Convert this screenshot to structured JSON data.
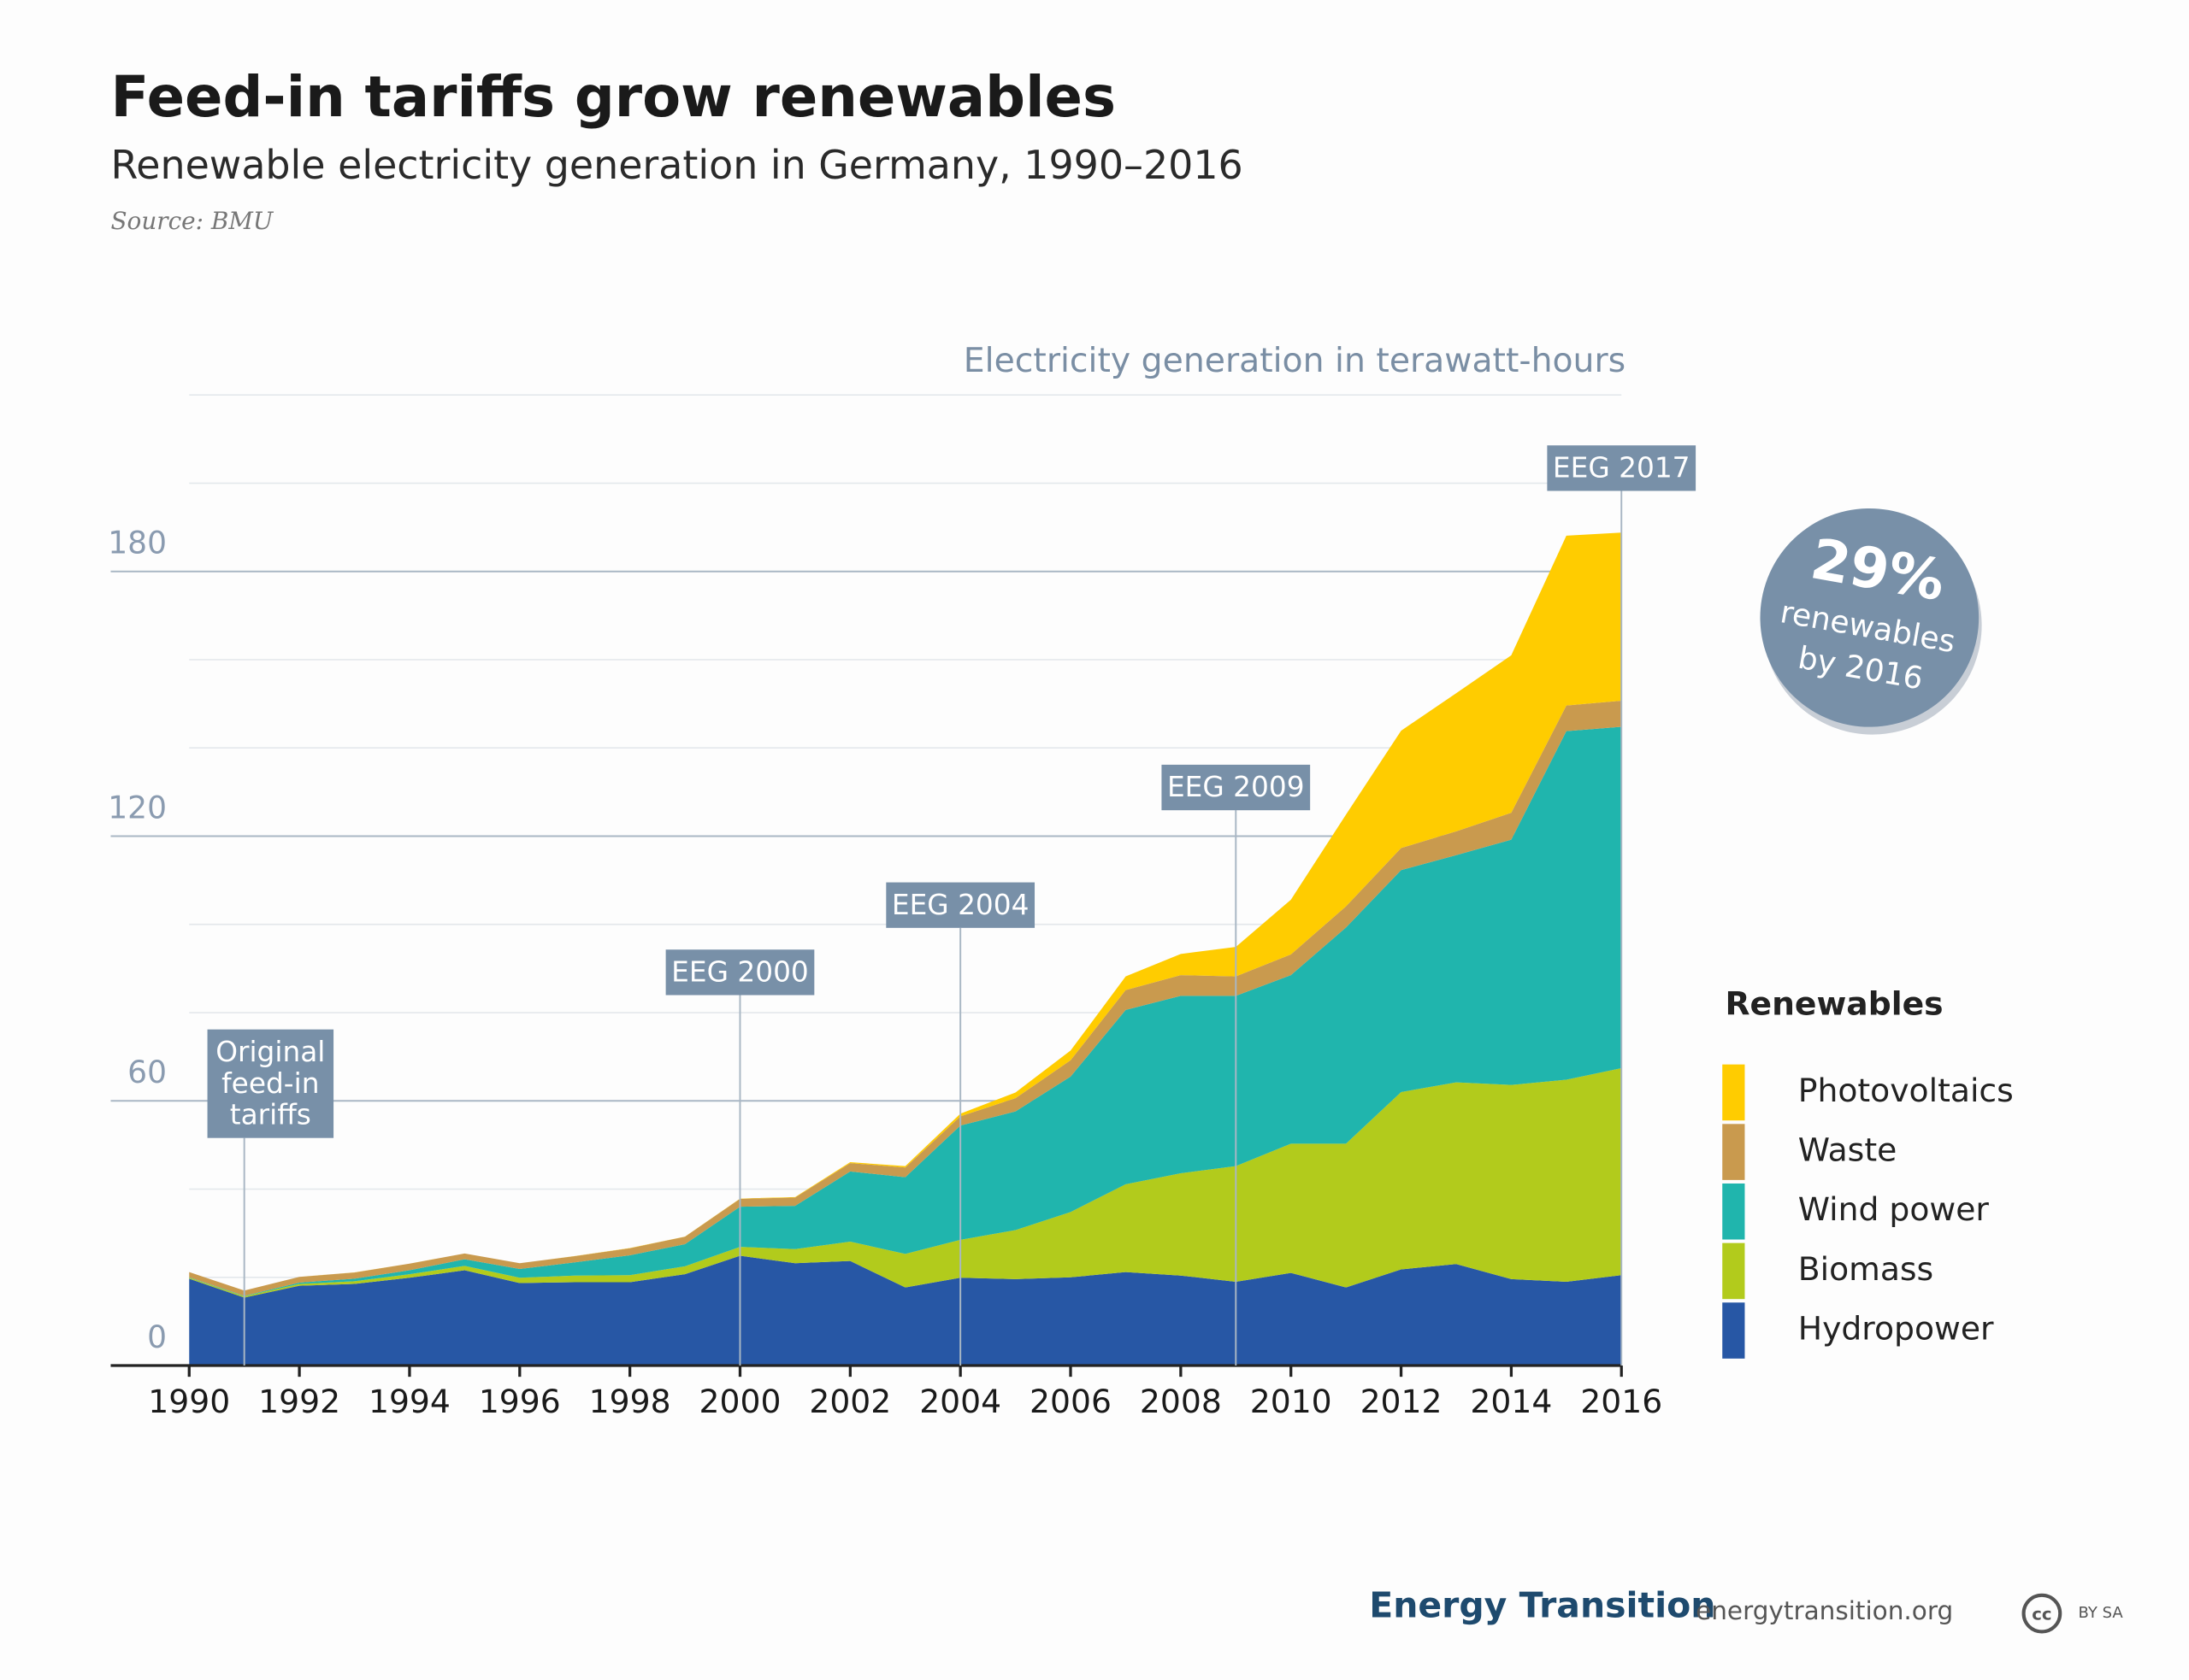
{
  "chart_data": {
    "type": "area",
    "stacked": true,
    "title": "Feed-in tariffs grow renewables",
    "subtitle": "Renewable electricity generation in Germany, 1990–2016",
    "source": "Source: BMU",
    "y_axis_title": "Electricity generation in terawatt-hours",
    "legend_title": "Renewables",
    "x": [
      1990,
      1991,
      1992,
      1993,
      1994,
      1995,
      1996,
      1997,
      1998,
      1999,
      2000,
      2001,
      2002,
      2003,
      2004,
      2005,
      2006,
      2007,
      2008,
      2009,
      2010,
      2011,
      2012,
      2013,
      2014,
      2015,
      2016
    ],
    "xlim": [
      1990,
      2016
    ],
    "xticks": [
      1990,
      1992,
      1994,
      1996,
      1998,
      2000,
      2002,
      2004,
      2006,
      2008,
      2010,
      2012,
      2014,
      2016
    ],
    "ylim": [
      0,
      220
    ],
    "yticks": [
      0,
      60,
      120,
      180
    ],
    "minor_yticks": [
      20,
      40,
      80,
      100,
      140,
      160,
      200,
      220
    ],
    "grid": true,
    "series": [
      {
        "name": "Hydropower",
        "color": "#2757a5",
        "values": [
          19.7,
          15.4,
          18.1,
          18.5,
          19.9,
          21.6,
          18.7,
          18.9,
          18.9,
          20.7,
          24.9,
          23.2,
          23.7,
          17.7,
          19.9,
          19.6,
          20.0,
          21.2,
          20.4,
          19.0,
          21.0,
          17.7,
          21.8,
          23.0,
          19.6,
          19.0,
          20.5
        ]
      },
      {
        "name": "Biomass",
        "color": "#b2cb1c",
        "values": [
          0.2,
          0.3,
          0.4,
          0.6,
          0.8,
          1.0,
          1.2,
          1.5,
          1.6,
          1.8,
          2.0,
          3.2,
          4.4,
          7.6,
          8.6,
          11.1,
          14.8,
          19.9,
          23.2,
          26.2,
          29.3,
          32.6,
          40.2,
          41.2,
          44.0,
          45.8,
          46.9
        ]
      },
      {
        "name": "Wind power",
        "color": "#20b5ad",
        "values": [
          0.1,
          0.1,
          0.3,
          0.6,
          0.9,
          1.5,
          2.0,
          3.0,
          4.5,
          5.0,
          9.1,
          9.8,
          15.9,
          17.4,
          25.9,
          26.9,
          30.7,
          39.5,
          40.2,
          38.6,
          38.2,
          49.0,
          50.3,
          51.5,
          55.6,
          79.0,
          77.4
        ]
      },
      {
        "name": "Waste",
        "color": "#c99a4e",
        "values": [
          1.2,
          1.2,
          1.3,
          1.4,
          1.5,
          1.3,
          1.3,
          1.4,
          1.6,
          1.7,
          1.8,
          1.9,
          1.9,
          2.2,
          2.1,
          3.0,
          3.7,
          4.5,
          4.7,
          4.4,
          4.7,
          4.8,
          5.0,
          5.4,
          6.1,
          5.8,
          5.9
        ]
      },
      {
        "name": "Photovoltaics",
        "color": "#ffcc00",
        "values": [
          0,
          0,
          0.01,
          0.01,
          0.01,
          0.01,
          0.01,
          0.02,
          0.03,
          0.03,
          0.06,
          0.1,
          0.2,
          0.3,
          0.6,
          1.3,
          2.2,
          3.1,
          4.8,
          6.7,
          12.4,
          20.8,
          26.6,
          31.3,
          35.7,
          38.5,
          38.1
        ]
      }
    ],
    "annotations": [
      {
        "x": 1991,
        "lines": [
          "Original",
          "feed-in",
          "tariffs"
        ]
      },
      {
        "x": 2000,
        "lines": [
          "EEG 2000"
        ]
      },
      {
        "x": 2004,
        "lines": [
          "EEG 2004"
        ]
      },
      {
        "x": 2009,
        "lines": [
          "EEG 2009"
        ]
      },
      {
        "x": 2016,
        "lines": [
          "EEG 2017"
        ]
      }
    ],
    "badge": {
      "lines": [
        "29%",
        "renewables",
        "by 2016"
      ]
    }
  },
  "footer": {
    "brand": "Energy Transition",
    "url": "energytransition.org",
    "license_icon": "cc",
    "license": "BY SA"
  }
}
